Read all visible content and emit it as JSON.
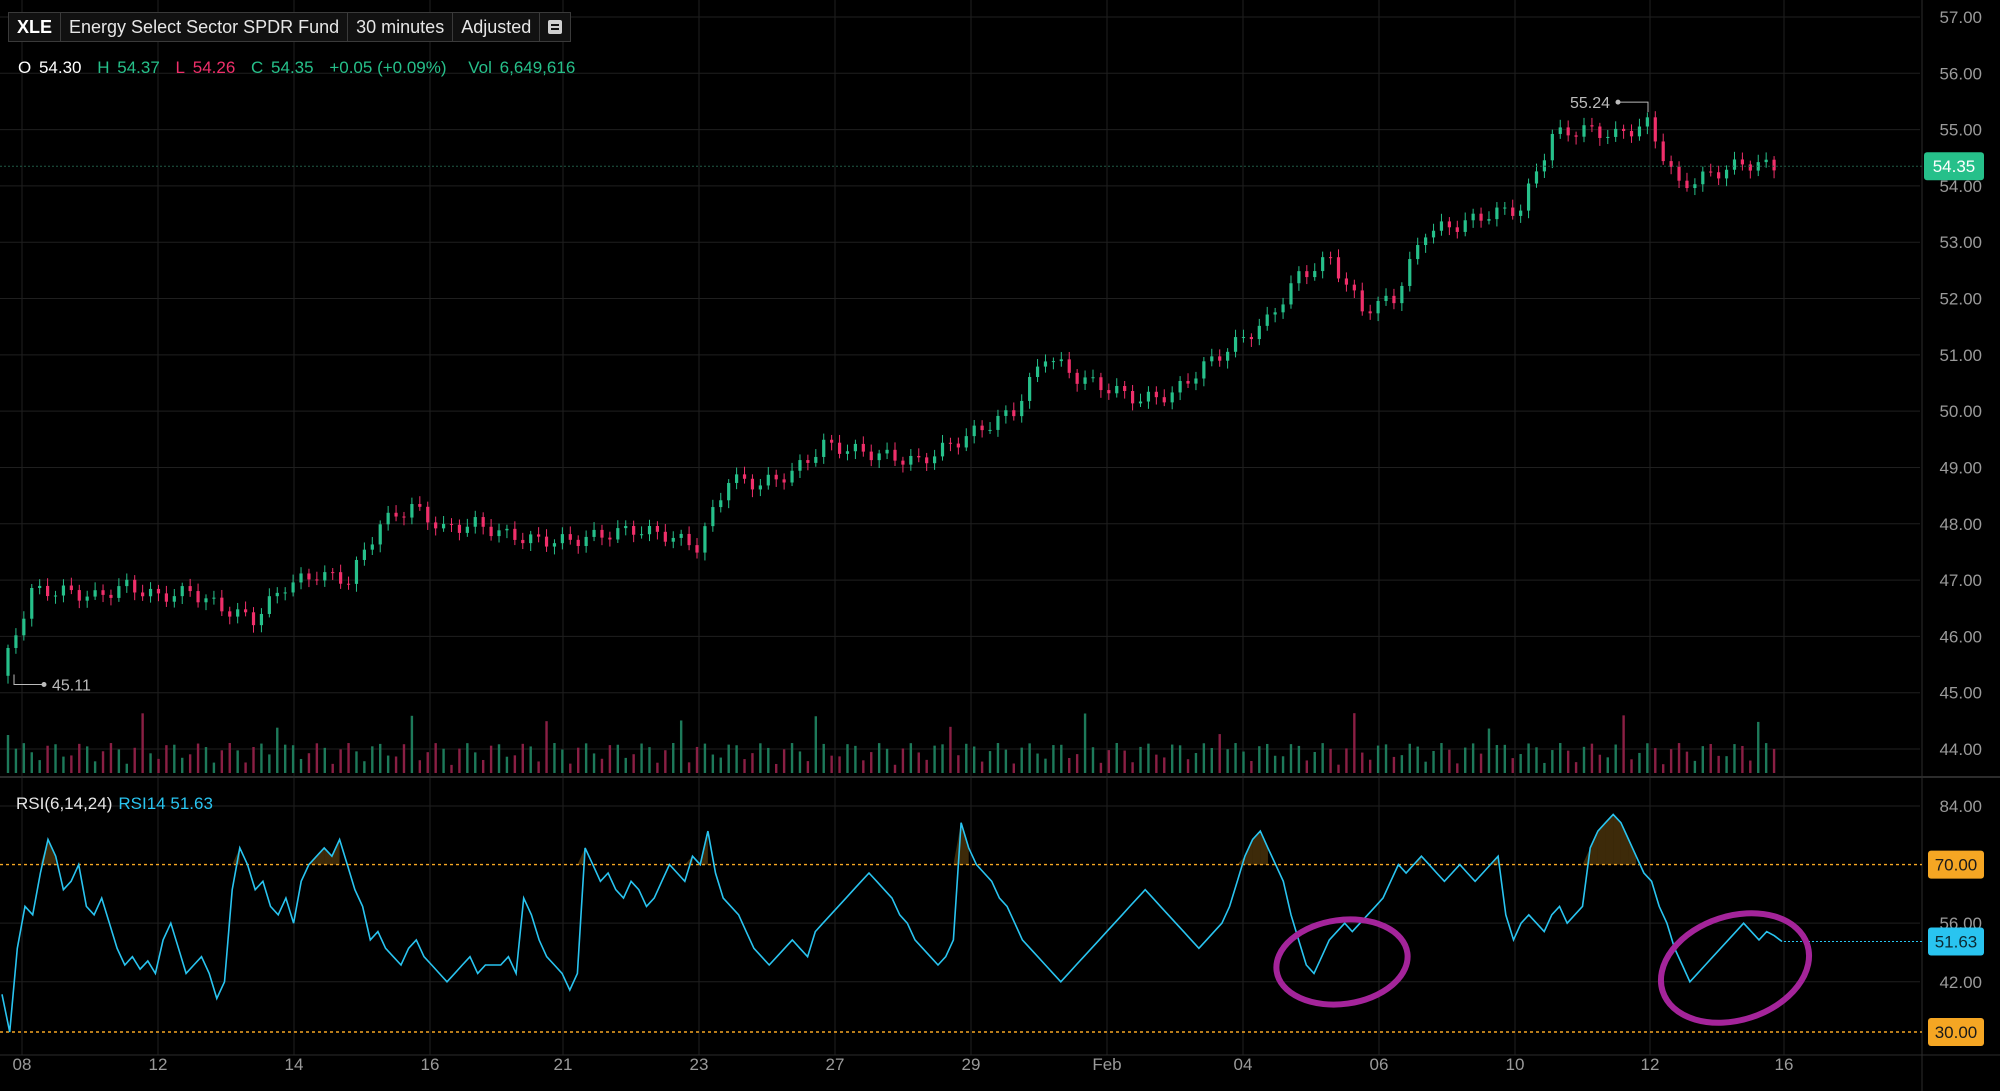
{
  "header": {
    "symbol": "XLE",
    "name": "Energy Select Sector SPDR Fund",
    "interval": "30 minutes",
    "adjustment": "Adjusted"
  },
  "ohlc": {
    "o_label": "O",
    "o": "54.30",
    "h_label": "H",
    "h": "54.37",
    "l_label": "L",
    "l": "54.26",
    "c_label": "C",
    "c": "54.35",
    "change": "+0.05 (+0.09%)",
    "vol_label": "Vol",
    "vol": "6,649,616"
  },
  "rsi_panel": {
    "label": "RSI(6,14,24)",
    "series_label": "RSI14 51.63"
  },
  "colors": {
    "up": "#26c08a",
    "down": "#ef2f6a",
    "rsi_line": "#29c4f0",
    "rsi_band": "#f5a623",
    "annotation": "#a4249a",
    "grid": "#1f1f1f"
  },
  "chart_data": [
    {
      "type": "candlestick",
      "title": "XLE",
      "x_ticks": [
        "08",
        "12",
        "14",
        "16",
        "21",
        "23",
        "27",
        "29",
        "Feb",
        "04",
        "06",
        "10",
        "12",
        "16"
      ],
      "y_ticks": [
        "57.00",
        "56.00",
        "55.00",
        "54.00",
        "53.00",
        "52.00",
        "51.00",
        "50.00",
        "49.00",
        "48.00",
        "47.00",
        "46.00",
        "45.00",
        "44.00"
      ],
      "ylim": [
        43.6,
        57.0
      ],
      "last_price": "54.35",
      "annotations": {
        "high_marker": "55.24",
        "low_marker": "45.11"
      },
      "session_closes": [
        [
          46.8,
          46.8,
          46.7,
          46.9,
          46.7,
          46.8,
          46.5,
          46.3
        ],
        [
          46.9,
          47.1,
          47.0,
          48.0,
          48.3,
          47.9,
          48.0,
          47.8
        ],
        [
          47.7,
          47.7,
          47.8,
          47.9,
          47.8,
          47.6,
          48.8,
          48.7
        ],
        [
          48.9,
          49.4,
          49.3,
          49.2,
          49.1,
          49.4,
          49.7,
          50.0
        ],
        [
          51.0,
          50.6,
          50.4,
          50.2,
          50.3,
          50.8,
          51.2,
          51.6
        ],
        [
          52.4,
          52.7,
          51.8,
          52.0,
          53.2,
          53.3,
          53.5,
          53.6
        ],
        [
          54.9,
          55.0,
          54.9,
          55.1,
          54.0,
          54.2,
          54.4,
          54.35
        ]
      ],
      "volume": {
        "visible": true
      }
    },
    {
      "type": "line",
      "title": "RSI(6,14,24)",
      "series": [
        {
          "name": "RSI14",
          "last": 51.63
        }
      ],
      "y_ticks": [
        "84.00",
        "70.00",
        "56.00",
        "42.00",
        "30.00"
      ],
      "bands": [
        70,
        30
      ],
      "ylim": [
        28,
        88
      ],
      "values": [
        39,
        30,
        50,
        60,
        58,
        68,
        76,
        72,
        64,
        66,
        70,
        60,
        58,
        62,
        56,
        50,
        46,
        48,
        45,
        47,
        44,
        52,
        56,
        50,
        44,
        46,
        48,
        44,
        38,
        42,
        64,
        74,
        70,
        64,
        66,
        60,
        58,
        62,
        56,
        66,
        70,
        72,
        74,
        72,
        76,
        70,
        64,
        60,
        52,
        54,
        50,
        48,
        46,
        50,
        52,
        48,
        46,
        44,
        42,
        44,
        46,
        48,
        44,
        46,
        46,
        46,
        48,
        44,
        62,
        58,
        52,
        48,
        46,
        44,
        40,
        44,
        74,
        70,
        66,
        68,
        64,
        62,
        66,
        64,
        60,
        62,
        66,
        70,
        68,
        66,
        72,
        70,
        78,
        68,
        62,
        60,
        58,
        54,
        50,
        48,
        46,
        48,
        50,
        52,
        50,
        48,
        54,
        56,
        58,
        60,
        62,
        64,
        66,
        68,
        66,
        64,
        62,
        58,
        56,
        52,
        50,
        48,
        46,
        48,
        52,
        80,
        74,
        70,
        68,
        66,
        62,
        60,
        56,
        52,
        50,
        48,
        46,
        44,
        42,
        44,
        46,
        48,
        50,
        52,
        54,
        56,
        58,
        60,
        62,
        64,
        62,
        60,
        58,
        56,
        54,
        52,
        50,
        52,
        54,
        56,
        60,
        66,
        72,
        76,
        78,
        74,
        70,
        66,
        58,
        52,
        46,
        44,
        48,
        52,
        54,
        56,
        54,
        56,
        58,
        60,
        62,
        66,
        70,
        68,
        70,
        72,
        70,
        68,
        66,
        68,
        70,
        68,
        66,
        68,
        70,
        72,
        58,
        52,
        56,
        58,
        56,
        54,
        58,
        60,
        56,
        58,
        60,
        74,
        78,
        80,
        82,
        80,
        76,
        72,
        68,
        66,
        60,
        56,
        50,
        46,
        42,
        44,
        46,
        48,
        50,
        52,
        54,
        56,
        54,
        52,
        54,
        53,
        51.63
      ]
    }
  ],
  "rsi_last": "51.63"
}
